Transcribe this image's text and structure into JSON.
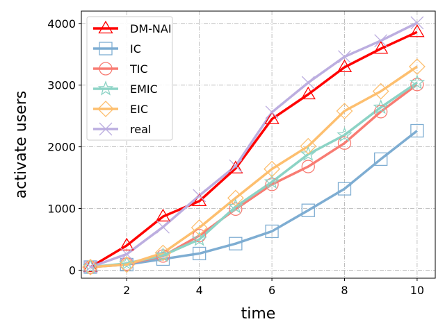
{
  "chart_data": {
    "type": "line",
    "title": "",
    "xlabel": "time",
    "ylabel": "activate users",
    "xlim": [
      0.75,
      10.5
    ],
    "ylim": [
      -130,
      4200
    ],
    "xticks": [
      2,
      4,
      6,
      8,
      10
    ],
    "yticks": [
      0,
      1000,
      2000,
      3000,
      4000
    ],
    "grid": true,
    "legend_position": "top-left",
    "x": [
      1,
      2,
      3,
      4,
      5,
      6,
      7,
      8,
      9,
      10
    ],
    "series": [
      {
        "name": "DM-NAI",
        "color": "#ff0000",
        "marker": "triangle",
        "width": 3.5,
        "values": [
          50,
          400,
          870,
          1120,
          1650,
          2450,
          2850,
          3290,
          3590,
          3860
        ]
      },
      {
        "name": "IC",
        "color": "#7eadd2",
        "marker": "square",
        "width": 3.5,
        "values": [
          50,
          90,
          180,
          270,
          430,
          630,
          970,
          1320,
          1800,
          2260
        ]
      },
      {
        "name": "TIC",
        "color": "#f87c73",
        "marker": "circle",
        "width": 3.5,
        "values": [
          50,
          100,
          230,
          560,
          990,
          1390,
          1680,
          2060,
          2570,
          3010
        ]
      },
      {
        "name": "EMIC",
        "color": "#8cd3c5",
        "marker": "star",
        "width": 3.5,
        "values": [
          50,
          110,
          240,
          500,
          1030,
          1430,
          1880,
          2190,
          2640,
          3040
        ]
      },
      {
        "name": "EIC",
        "color": "#fdbf6f",
        "marker": "diamond",
        "width": 3.5,
        "values": [
          50,
          90,
          280,
          690,
          1170,
          1640,
          2010,
          2580,
          2900,
          3300
        ]
      },
      {
        "name": "real",
        "color": "#bcaee0",
        "marker": "x",
        "width": 3.5,
        "values": [
          50,
          260,
          700,
          1210,
          1690,
          2560,
          3040,
          3460,
          3720,
          4010
        ]
      }
    ]
  }
}
